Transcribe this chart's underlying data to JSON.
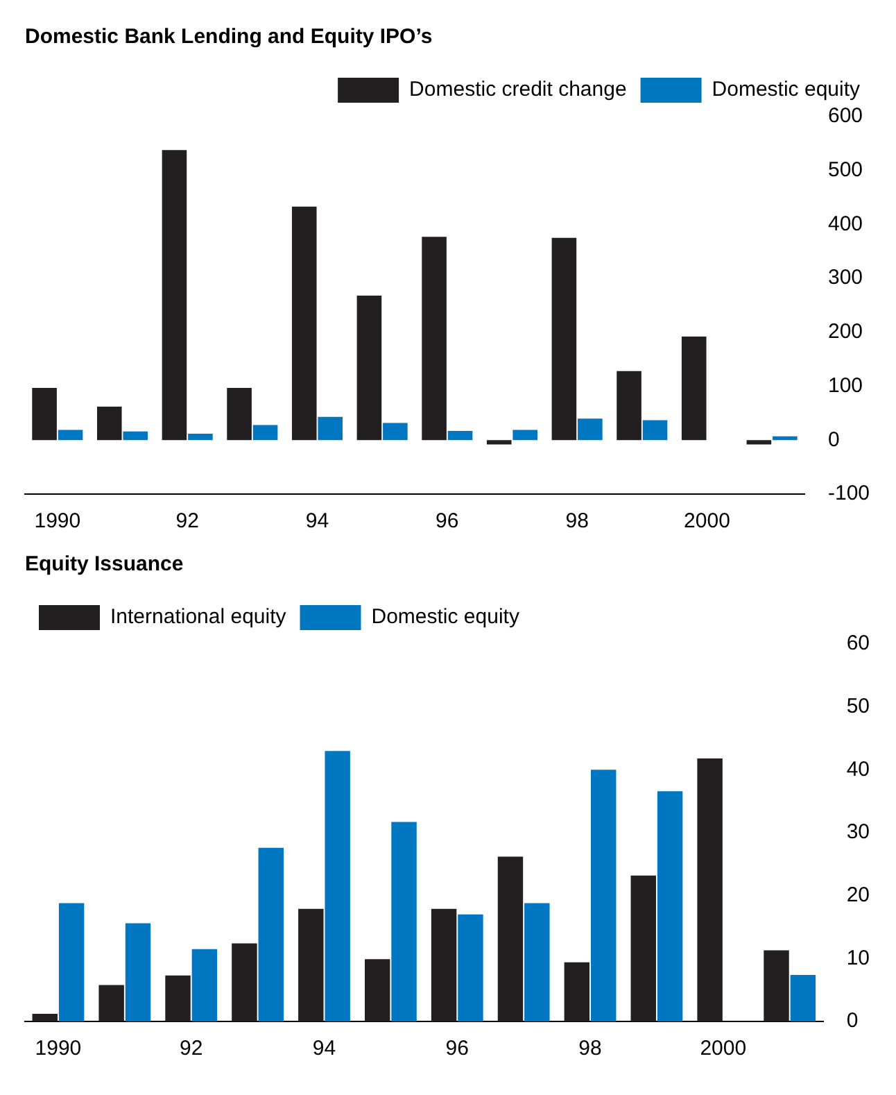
{
  "chart_data": [
    {
      "type": "bar",
      "title": "Domestic Bank Lending and Equity IPO’s",
      "categories": [
        "1990",
        null,
        "92",
        null,
        "94",
        null,
        "96",
        null,
        "98",
        null,
        "2000",
        null
      ],
      "series": [
        {
          "name": "Domestic credit change",
          "color": "#231f20",
          "values": [
            97,
            62,
            538,
            97,
            433,
            268,
            377,
            -8,
            375,
            128,
            192,
            -8
          ]
        },
        {
          "name": "Domestic equity",
          "color": "#0077c0",
          "values": [
            19,
            16,
            12,
            28,
            43,
            32,
            17,
            19,
            40,
            37,
            0,
            7
          ]
        }
      ],
      "ylim": [
        -100,
        600
      ],
      "yticks": [
        -100,
        0,
        100,
        200,
        300,
        400,
        500,
        600
      ],
      "grid": false,
      "legend": "top right"
    },
    {
      "type": "bar",
      "title": "Equity Issuance",
      "categories": [
        "1990",
        null,
        "92",
        null,
        "94",
        null,
        "96",
        null,
        "98",
        null,
        "2000",
        null
      ],
      "series": [
        {
          "name": "International equity",
          "color": "#231f20",
          "values": [
            1.2,
            5.8,
            7.3,
            12.4,
            17.9,
            9.9,
            17.9,
            26.2,
            9.4,
            23.2,
            41.8,
            11.3
          ]
        },
        {
          "name": "Domestic equity",
          "color": "#0077c0",
          "values": [
            18.8,
            15.6,
            11.5,
            27.6,
            43,
            31.7,
            17,
            18.8,
            40,
            36.6,
            0,
            7.4
          ]
        }
      ],
      "ylim": [
        0,
        60
      ],
      "yticks": [
        0,
        10,
        20,
        30,
        40,
        50,
        60
      ],
      "grid": false,
      "legend": "top left"
    }
  ]
}
